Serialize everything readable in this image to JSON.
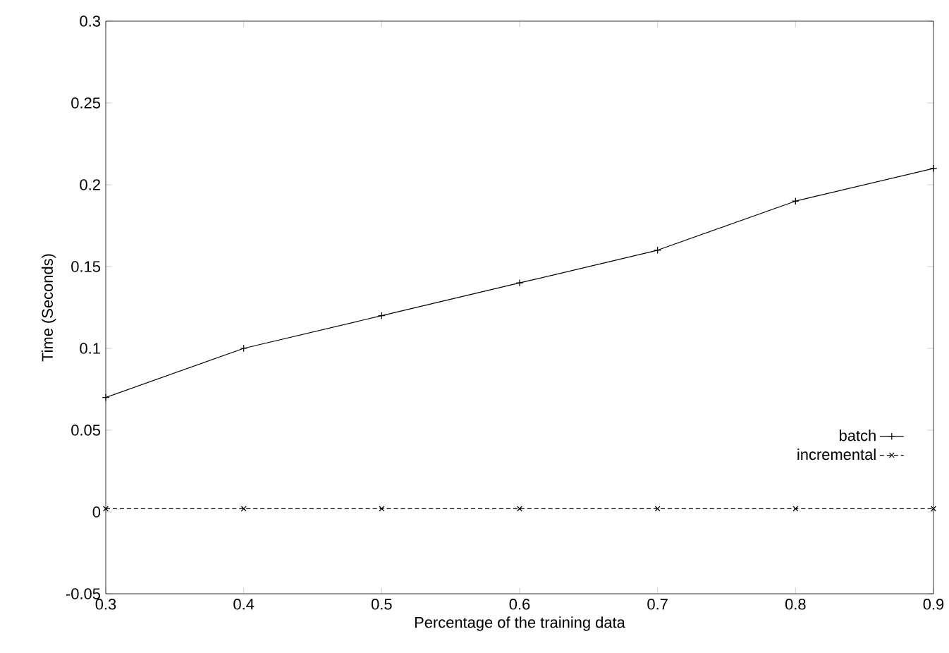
{
  "chart_data": {
    "type": "line",
    "xlabel": "Percentage of the training data",
    "ylabel": "Time (Seconds)",
    "x": [
      0.3,
      0.4,
      0.5,
      0.6,
      0.7,
      0.8,
      0.9
    ],
    "series": [
      {
        "name": "batch",
        "color": "#000000",
        "marker": "plus",
        "line_style": "solid",
        "values": [
          0.07,
          0.1,
          0.12,
          0.14,
          0.16,
          0.19,
          0.21
        ]
      },
      {
        "name": "incremental",
        "color": "#000000",
        "marker": "cross",
        "line_style": "dashed",
        "values": [
          0.002,
          0.002,
          0.002,
          0.002,
          0.002,
          0.002,
          0.002
        ]
      }
    ],
    "xlim": [
      0.3,
      0.9
    ],
    "ylim": [
      -0.05,
      0.3
    ],
    "xticks": [
      0.3,
      0.4,
      0.5,
      0.6,
      0.7,
      0.8,
      0.9
    ],
    "yticks": [
      -0.05,
      0,
      0.05,
      0.1,
      0.15,
      0.2,
      0.25,
      0.3
    ],
    "grid": false,
    "legend": "bottom right"
  }
}
